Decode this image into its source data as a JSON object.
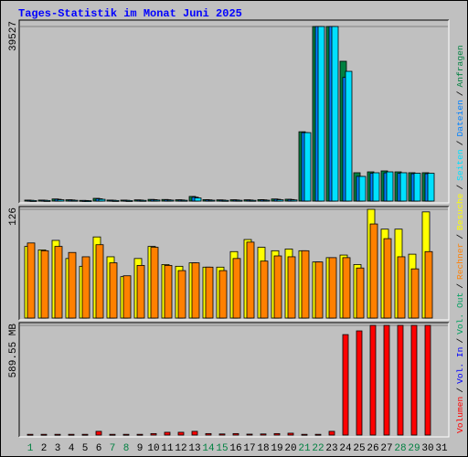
{
  "chart_data": {
    "type": "bar",
    "title": "Tages-Statistik im Monat Juni 2025",
    "categories": [
      1,
      2,
      3,
      4,
      5,
      6,
      7,
      8,
      9,
      10,
      11,
      12,
      13,
      14,
      15,
      16,
      17,
      18,
      19,
      20,
      21,
      22,
      23,
      24,
      25,
      26,
      27,
      28,
      29,
      30,
      31
    ],
    "highlight_categories": [
      1,
      7,
      8,
      14,
      15,
      21,
      22,
      28,
      29
    ],
    "highlight_color": "#008040",
    "legend_separator": "/",
    "panels": [
      {
        "ylim": [
          0,
          39527
        ],
        "yticks": [
          39527
        ],
        "series": [
          {
            "name": "Anfragen",
            "color": "#008040",
            "values": [
              220,
              230,
              480,
              300,
              160,
              620,
              230,
              220,
              280,
              380,
              360,
              300,
              1050,
              330,
              280,
              300,
              290,
              330,
              480,
              420,
              15700,
              39527,
              39527,
              31660,
              6420,
              6620,
              6830,
              6620,
              6420,
              6420,
              null
            ]
          },
          {
            "name": "Dateien",
            "color": "#0080ff",
            "values": [
              180,
              190,
              400,
              250,
              130,
              520,
              190,
              180,
              230,
              320,
              300,
              250,
              880,
              280,
              230,
              250,
              240,
              280,
              400,
              350,
              15500,
              39527,
              39527,
              28000,
              5600,
              6300,
              6400,
              6300,
              6200,
              6200,
              null
            ]
          },
          {
            "name": "Seiten",
            "color": "#00e0ff",
            "values": [
              120,
              130,
              300,
              180,
              90,
              400,
              130,
              120,
              160,
              240,
              220,
              180,
              700,
              200,
              160,
              180,
              170,
              200,
              300,
              260,
              15500,
              39527,
              39527,
              29380,
              5590,
              6415,
              6620,
              6420,
              6300,
              6300,
              null
            ]
          }
        ]
      },
      {
        "ylim": [
          0,
          126
        ],
        "yticks": [
          126
        ],
        "series": [
          {
            "name": "Besuche",
            "color": "#ffff00",
            "values": [
              83,
              79,
              90,
              69,
              60,
              94,
              71,
              48,
              69,
              83,
              62,
              60,
              64,
              59,
              59,
              77,
              91,
              82,
              78,
              80,
              78,
              65,
              70,
              73,
              62,
              126,
              103,
              103,
              74,
              123,
              null
            ]
          },
          {
            "name": "Rechner",
            "color": "#ff8000",
            "values": [
              87,
              78,
              83,
              76,
              71,
              85,
              64,
              49,
              61,
              82,
              61,
              55,
              64,
              59,
              55,
              69,
              88,
              66,
              72,
              71,
              78,
              65,
              70,
              70,
              58,
              109,
              92,
              71,
              57,
              77,
              null
            ]
          }
        ]
      },
      {
        "ylim": [
          0,
          589.55
        ],
        "yticks": [
          {
            "value": 589.55,
            "label": "589.55 MB"
          }
        ],
        "series": [
          {
            "name": "Vol. Out",
            "color": "#00a060"
          },
          {
            "name": "Vol. In",
            "color": "#0000ff"
          },
          {
            "name": "Volumen",
            "color": "#ff0000",
            "values": [
              4,
              4,
              4,
              4,
              4,
              20,
              4,
              4,
              4,
              8,
              15,
              15,
              20,
              8,
              6,
              8,
              5,
              6,
              8,
              10,
              4,
              4,
              20,
              540,
              560,
              589.55,
              589.55,
              589.55,
              589.55,
              589.55,
              null
            ]
          }
        ]
      }
    ]
  }
}
